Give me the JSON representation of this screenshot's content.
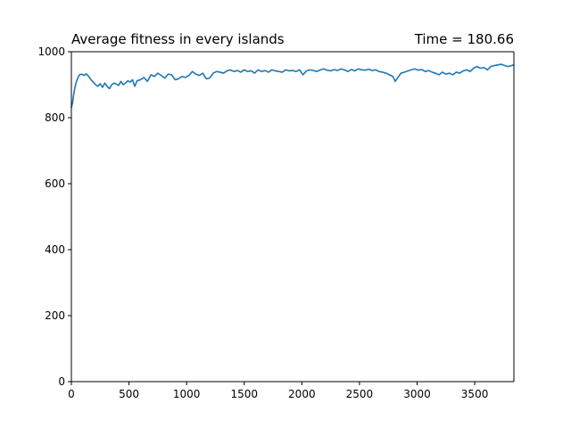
{
  "chart_data": {
    "type": "line",
    "title": "Average fitness in every islands",
    "title_right": "Time = 180.66",
    "xlabel": "",
    "ylabel": "",
    "xlim": [
      0,
      3840
    ],
    "ylim": [
      0,
      1000
    ],
    "grid": false,
    "legend": "none",
    "line_color": "#1f77b4",
    "x_ticks": [
      {
        "value": 0,
        "label": "0"
      },
      {
        "value": 500,
        "label": "500"
      },
      {
        "value": 1000,
        "label": "1000"
      },
      {
        "value": 1500,
        "label": "1500"
      },
      {
        "value": 2000,
        "label": "2000"
      },
      {
        "value": 2500,
        "label": "2500"
      },
      {
        "value": 3000,
        "label": "3000"
      },
      {
        "value": 3500,
        "label": "3500"
      }
    ],
    "y_ticks": [
      {
        "value": 0,
        "label": "0"
      },
      {
        "value": 200,
        "label": "200"
      },
      {
        "value": 400,
        "label": "400"
      },
      {
        "value": 600,
        "label": "600"
      },
      {
        "value": 800,
        "label": "800"
      },
      {
        "value": 1000,
        "label": "1000"
      }
    ],
    "series": [
      {
        "x": [
          0,
          10,
          20,
          30,
          40,
          55,
          70,
          90,
          110,
          130,
          150,
          170,
          190,
          210,
          230,
          250,
          270,
          290,
          310,
          330,
          350,
          370,
          390,
          410,
          430,
          450,
          470,
          490,
          510,
          530,
          550,
          570,
          600,
          630,
          660,
          690,
          720,
          750,
          780,
          810,
          840,
          870,
          900,
          930,
          960,
          990,
          1020,
          1050,
          1080,
          1110,
          1140,
          1170,
          1200,
          1230,
          1260,
          1290,
          1320,
          1350,
          1380,
          1410,
          1440,
          1470,
          1500,
          1530,
          1560,
          1590,
          1620,
          1650,
          1680,
          1710,
          1740,
          1770,
          1800,
          1830,
          1860,
          1890,
          1920,
          1950,
          1980,
          2010,
          2040,
          2070,
          2100,
          2130,
          2160,
          2190,
          2220,
          2250,
          2280,
          2310,
          2340,
          2370,
          2400,
          2430,
          2460,
          2490,
          2520,
          2550,
          2580,
          2610,
          2640,
          2670,
          2700,
          2730,
          2760,
          2790,
          2810,
          2830,
          2860,
          2890,
          2920,
          2950,
          2980,
          3010,
          3040,
          3070,
          3100,
          3130,
          3160,
          3190,
          3220,
          3250,
          3280,
          3310,
          3340,
          3370,
          3400,
          3430,
          3460,
          3490,
          3520,
          3550,
          3580,
          3610,
          3640,
          3670,
          3700,
          3730,
          3760,
          3790,
          3820,
          3840
        ],
        "y": [
          830,
          845,
          870,
          890,
          905,
          920,
          930,
          932,
          928,
          933,
          925,
          915,
          908,
          900,
          895,
          903,
          892,
          905,
          895,
          888,
          900,
          905,
          902,
          898,
          910,
          900,
          905,
          912,
          908,
          915,
          895,
          912,
          915,
          922,
          910,
          930,
          925,
          935,
          928,
          920,
          932,
          930,
          915,
          918,
          925,
          922,
          928,
          940,
          932,
          928,
          935,
          918,
          920,
          935,
          940,
          938,
          935,
          942,
          945,
          940,
          943,
          938,
          945,
          940,
          942,
          935,
          945,
          940,
          943,
          938,
          945,
          942,
          940,
          938,
          945,
          942,
          943,
          940,
          945,
          930,
          942,
          945,
          943,
          940,
          945,
          948,
          944,
          942,
          946,
          943,
          948,
          945,
          940,
          946,
          942,
          948,
          945,
          944,
          947,
          943,
          945,
          940,
          938,
          935,
          930,
          925,
          910,
          920,
          935,
          938,
          942,
          945,
          948,
          944,
          946,
          940,
          943,
          938,
          935,
          930,
          938,
          932,
          935,
          930,
          938,
          935,
          942,
          945,
          940,
          950,
          955,
          950,
          952,
          945,
          955,
          958,
          960,
          962,
          958,
          955,
          958,
          960
        ]
      }
    ]
  }
}
